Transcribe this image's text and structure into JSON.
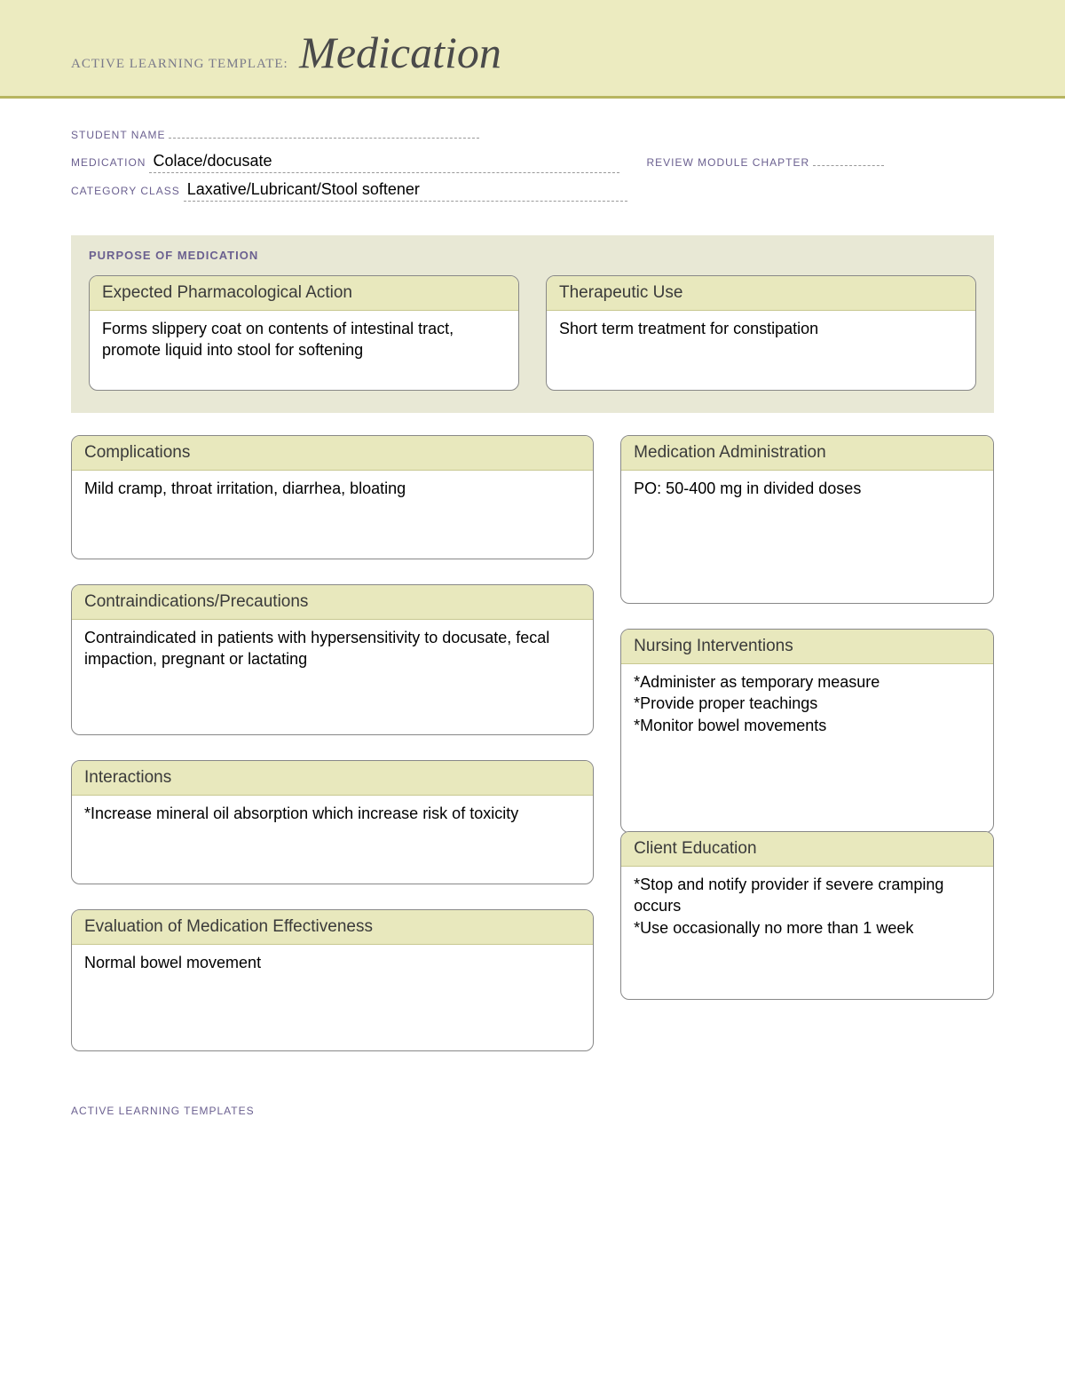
{
  "header": {
    "prefix": "ACTIVE LEARNING TEMPLATE:",
    "title": "Medication"
  },
  "form": {
    "student_name_label": "STUDENT NAME",
    "student_name_value": "",
    "medication_label": "MEDICATION",
    "medication_value": "Colace/docusate",
    "review_label": "REVIEW MODULE CHAPTER",
    "review_value": "",
    "category_label": "CATEGORY CLASS",
    "category_value": "Laxative/Lubricant/Stool softener"
  },
  "purpose": {
    "section_title": "PURPOSE OF MEDICATION",
    "pharm_action": {
      "label": "Expected Pharmacological Action",
      "text": "Forms slippery coat on contents of intestinal tract, promote liquid into stool for softening"
    },
    "therapeutic": {
      "label": "Therapeutic Use",
      "text": "Short term treatment for constipation"
    }
  },
  "boxes": {
    "complications": {
      "label": "Complications",
      "text": "Mild cramp, throat irritation, diarrhea, bloating"
    },
    "contraindications": {
      "label": "Contraindications/Precautions",
      "text": "Contraindicated in patients with hypersensitivity to docusate, fecal impaction, pregnant or lactating"
    },
    "interactions": {
      "label": "Interactions",
      "text": "*Increase mineral oil absorption which increase risk of toxicity"
    },
    "evaluation": {
      "label": "Evaluation of Medication Effectiveness",
      "text": "Normal bowel movement"
    },
    "administration": {
      "label": "Medication Administration",
      "text": "PO: 50-400 mg in divided doses"
    },
    "nursing": {
      "label": "Nursing Interventions",
      "text": "*Administer as temporary measure\n*Provide proper teachings\n*Monitor bowel movements"
    },
    "education": {
      "label": "Client Education",
      "text": "*Stop and notify provider if severe cramping occurs\n*Use occasionally no more than 1 week"
    }
  },
  "footer": "ACTIVE LEARNING TEMPLATES",
  "colors": {
    "band": "#ecebc0",
    "band_border": "#b7b560",
    "label": "#6b6090",
    "box_header": "#e8e8bd",
    "purpose_bg": "#e8e8d5"
  }
}
